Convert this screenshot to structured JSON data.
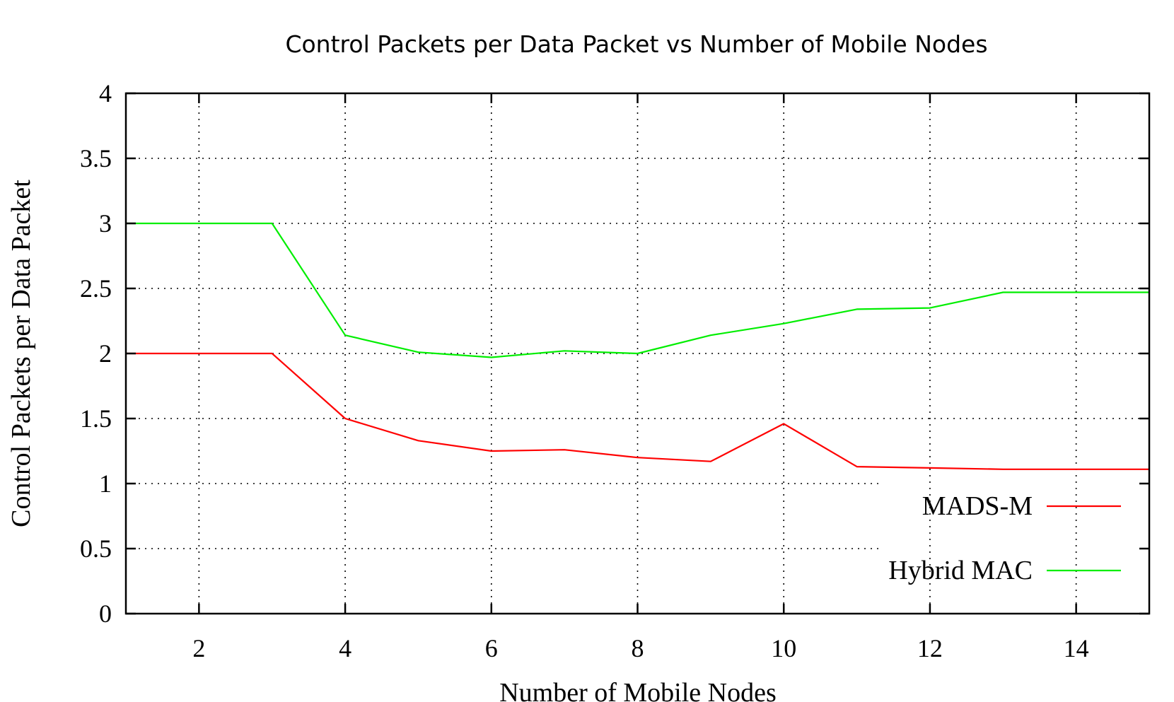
{
  "chart_data": {
    "type": "line",
    "title": "Control Packets per Data Packet vs Number of Mobile Nodes",
    "xlabel": "Number of Mobile Nodes",
    "ylabel": "Control Packets per Data Packet",
    "xlim": [
      1,
      15
    ],
    "ylim": [
      0,
      4
    ],
    "xticks": [
      2,
      4,
      6,
      8,
      10,
      12,
      14
    ],
    "yticks": [
      0,
      0.5,
      1,
      1.5,
      2,
      2.5,
      3,
      3.5,
      4
    ],
    "ytick_labels": [
      "0",
      "0.5",
      "1",
      "1.5",
      "2",
      "2.5",
      "3",
      "3.5",
      "4"
    ],
    "grid": true,
    "legend_position": "bottom-right",
    "x": [
      1,
      2,
      3,
      4,
      5,
      6,
      7,
      8,
      9,
      10,
      11,
      12,
      13,
      14,
      15
    ],
    "series": [
      {
        "name": "MADS-M",
        "color": "#ff0000",
        "values": [
          2.0,
          2.0,
          2.0,
          1.5,
          1.33,
          1.25,
          1.26,
          1.2,
          1.17,
          1.46,
          1.13,
          1.12,
          1.11,
          1.11,
          1.11
        ]
      },
      {
        "name": "Hybrid MAC",
        "color": "#00ee00",
        "values": [
          3.0,
          3.0,
          3.0,
          2.14,
          2.01,
          1.97,
          2.02,
          2.0,
          2.14,
          2.23,
          2.34,
          2.35,
          2.47,
          2.47,
          2.47
        ]
      }
    ]
  }
}
